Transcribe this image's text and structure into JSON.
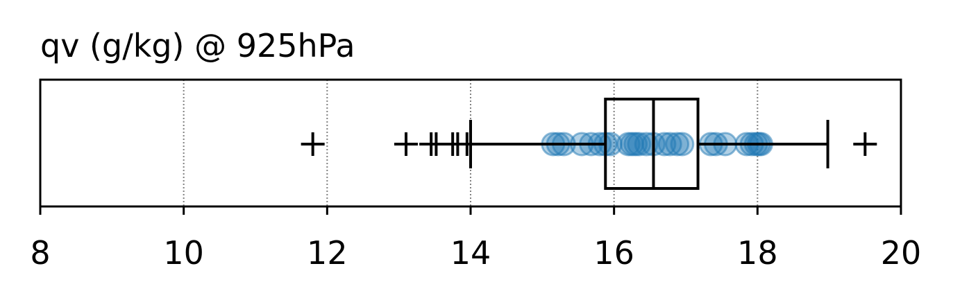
{
  "chart_data": {
    "type": "box",
    "title": "qv (g/kg) @ 925hPa",
    "xlabel": "",
    "ylabel": "",
    "xlim": [
      8,
      20
    ],
    "xticks": [
      8,
      10,
      12,
      14,
      16,
      18,
      20
    ],
    "xtick_labels": [
      "8",
      "10",
      "12",
      "14",
      "16",
      "18",
      "20"
    ],
    "grid": "vertical dotted at 10, 12, 14, 16, 18",
    "box": {
      "whisker_low": 14.0,
      "q1": 15.88,
      "median": 16.55,
      "q3": 17.17,
      "whisker_high": 18.98
    },
    "outliers": [
      11.8,
      13.1,
      13.45,
      13.52,
      13.75,
      13.82,
      13.95,
      19.5
    ],
    "points": [
      15.15,
      15.22,
      15.3,
      15.55,
      15.68,
      15.8,
      15.88,
      15.95,
      16.2,
      16.25,
      16.3,
      16.35,
      16.45,
      16.55,
      16.7,
      16.78,
      16.88,
      16.95,
      17.35,
      17.42,
      17.55,
      17.85,
      17.92,
      17.98,
      18.02,
      18.05
    ],
    "colors": {
      "points": "#1f77b4",
      "box": "#000000",
      "grid": "#808080"
    }
  }
}
